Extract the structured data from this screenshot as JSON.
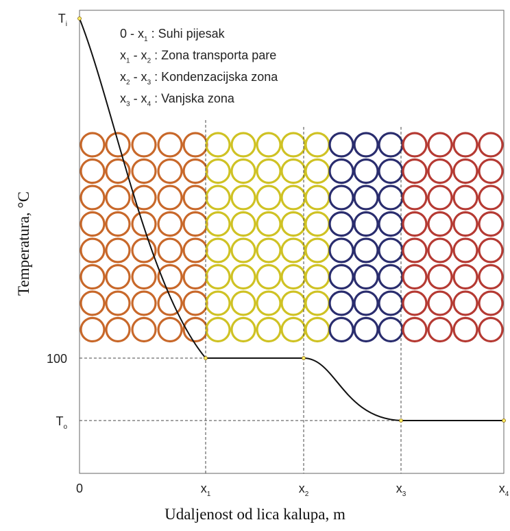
{
  "axes": {
    "y_title": "Temperatura,  °C",
    "x_title": "Udaljenost od lica kalupa, m"
  },
  "y_labels": [
    [
      {
        "base": "T",
        "sub": "i"
      }
    ],
    [
      {
        "base": "100"
      }
    ],
    [
      {
        "base": "T",
        "sub": "o"
      }
    ]
  ],
  "x_labels": [
    [
      {
        "base": "0"
      }
    ],
    [
      {
        "base": "x",
        "sub": "1"
      }
    ],
    [
      {
        "base": "x",
        "sub": "2"
      }
    ],
    [
      {
        "base": "x",
        "sub": "3"
      }
    ],
    [
      {
        "base": "x",
        "sub": "4"
      }
    ]
  ],
  "legend": [
    [
      {
        "base": "0 - x",
        "sub": "1"
      },
      {
        "base": " : Suhi pijesak"
      }
    ],
    [
      {
        "base": "x",
        "sub": "1"
      },
      {
        "base": " - x",
        "sub": "2"
      },
      {
        "base": " : Zona transporta pare"
      }
    ],
    [
      {
        "base": "x",
        "sub": "2"
      },
      {
        "base": " - x",
        "sub": "3"
      },
      {
        "base": " : Kondenzacijska zona"
      }
    ],
    [
      {
        "base": "x",
        "sub": "3"
      },
      {
        "base": " - x",
        "sub": "4"
      },
      {
        "base": " : Vanjska zona"
      }
    ]
  ]
}
